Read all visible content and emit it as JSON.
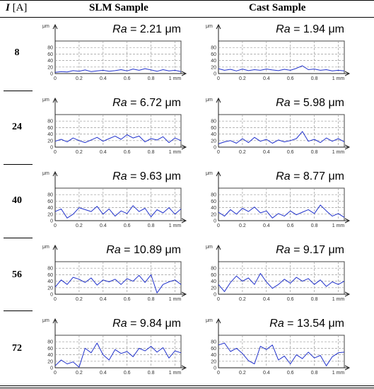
{
  "header": {
    "current_symbol": "I",
    "current_unit": "[A]",
    "col_slm": "SLM Sample",
    "col_cast": "Cast Sample"
  },
  "axis": {
    "y_unit": "μm",
    "x_unit": "mm",
    "y_ticks": [
      "0",
      "20",
      "40",
      "60",
      "80"
    ],
    "x_ticks": [
      "0",
      "0.2",
      "0.4",
      "0.6",
      "0.8",
      "1"
    ],
    "ylim": [
      0,
      100
    ],
    "xlim": [
      0,
      1.05
    ],
    "ra_symbol": "Ra",
    "ra_unit": "μm"
  },
  "colors": {
    "profile": "#2233cc",
    "grid": "#9a9a9a",
    "frame": "#444444"
  },
  "rows": [
    {
      "current": "8",
      "slm": {
        "ra": "2.21",
        "chart_data": {
          "type": "line",
          "x": [
            0,
            0.05,
            0.1,
            0.15,
            0.2,
            0.25,
            0.3,
            0.35,
            0.4,
            0.45,
            0.5,
            0.55,
            0.6,
            0.65,
            0.7,
            0.75,
            0.8,
            0.85,
            0.9,
            0.95,
            1,
            1.05
          ],
          "y": [
            4,
            6,
            5,
            9,
            7,
            11,
            6,
            8,
            10,
            7,
            9,
            12,
            8,
            14,
            10,
            15,
            11,
            7,
            12,
            8,
            10,
            6
          ]
        }
      },
      "cast": {
        "ra": "1.94",
        "chart_data": {
          "type": "line",
          "x": [
            0,
            0.05,
            0.1,
            0.15,
            0.2,
            0.25,
            0.3,
            0.35,
            0.4,
            0.45,
            0.5,
            0.55,
            0.6,
            0.65,
            0.7,
            0.75,
            0.8,
            0.85,
            0.9,
            0.95,
            1,
            1.05
          ],
          "y": [
            15,
            10,
            13,
            8,
            14,
            9,
            12,
            10,
            14,
            11,
            9,
            13,
            10,
            16,
            24,
            12,
            14,
            10,
            12,
            8,
            10,
            8
          ]
        }
      }
    },
    {
      "current": "24",
      "slm": {
        "ra": "6.72",
        "chart_data": {
          "type": "line",
          "x": [
            0,
            0.05,
            0.1,
            0.15,
            0.2,
            0.25,
            0.3,
            0.35,
            0.4,
            0.45,
            0.5,
            0.55,
            0.6,
            0.65,
            0.7,
            0.75,
            0.8,
            0.85,
            0.9,
            0.95,
            1,
            1.05
          ],
          "y": [
            18,
            24,
            16,
            28,
            20,
            14,
            22,
            30,
            18,
            26,
            34,
            24,
            38,
            28,
            34,
            16,
            26,
            22,
            32,
            14,
            28,
            20
          ]
        }
      },
      "cast": {
        "ra": "5.98",
        "chart_data": {
          "type": "line",
          "x": [
            0,
            0.05,
            0.1,
            0.15,
            0.2,
            0.25,
            0.3,
            0.35,
            0.4,
            0.45,
            0.5,
            0.55,
            0.6,
            0.65,
            0.7,
            0.75,
            0.8,
            0.85,
            0.9,
            0.95,
            1,
            1.05
          ],
          "y": [
            10,
            16,
            20,
            12,
            26,
            14,
            30,
            18,
            24,
            12,
            22,
            16,
            20,
            26,
            48,
            18,
            24,
            14,
            28,
            18,
            26,
            16
          ]
        }
      }
    },
    {
      "current": "40",
      "slm": {
        "ra": "9.63",
        "chart_data": {
          "type": "line",
          "x": [
            0,
            0.05,
            0.1,
            0.15,
            0.2,
            0.25,
            0.3,
            0.35,
            0.4,
            0.45,
            0.5,
            0.55,
            0.6,
            0.65,
            0.7,
            0.75,
            0.8,
            0.85,
            0.9,
            0.95,
            1,
            1.05
          ],
          "y": [
            28,
            36,
            8,
            20,
            40,
            34,
            28,
            44,
            20,
            36,
            14,
            30,
            22,
            46,
            28,
            38,
            12,
            34,
            24,
            40,
            20,
            36
          ]
        }
      },
      "cast": {
        "ra": "8.77",
        "chart_data": {
          "type": "line",
          "x": [
            0,
            0.05,
            0.1,
            0.15,
            0.2,
            0.25,
            0.3,
            0.35,
            0.4,
            0.45,
            0.5,
            0.55,
            0.6,
            0.65,
            0.7,
            0.75,
            0.8,
            0.85,
            0.9,
            0.95,
            1,
            1.05
          ],
          "y": [
            26,
            14,
            34,
            20,
            38,
            28,
            42,
            24,
            30,
            8,
            22,
            14,
            30,
            18,
            26,
            34,
            22,
            48,
            30,
            14,
            22,
            10
          ]
        }
      }
    },
    {
      "current": "56",
      "slm": {
        "ra": "10.89",
        "chart_data": {
          "type": "line",
          "x": [
            0,
            0.05,
            0.1,
            0.15,
            0.2,
            0.25,
            0.3,
            0.35,
            0.4,
            0.45,
            0.5,
            0.55,
            0.6,
            0.65,
            0.7,
            0.75,
            0.8,
            0.85,
            0.9,
            0.95,
            1,
            1.05
          ],
          "y": [
            22,
            44,
            30,
            52,
            46,
            36,
            50,
            28,
            44,
            38,
            46,
            30,
            48,
            40,
            58,
            36,
            60,
            4,
            30,
            38,
            44,
            30
          ]
        }
      },
      "cast": {
        "ra": "9.17",
        "chart_data": {
          "type": "line",
          "x": [
            0,
            0.05,
            0.1,
            0.15,
            0.2,
            0.25,
            0.3,
            0.35,
            0.4,
            0.45,
            0.5,
            0.55,
            0.6,
            0.65,
            0.7,
            0.75,
            0.8,
            0.85,
            0.9,
            0.95,
            1,
            1.05
          ],
          "y": [
            30,
            8,
            36,
            56,
            40,
            50,
            30,
            64,
            38,
            18,
            30,
            46,
            34,
            52,
            40,
            48,
            30,
            44,
            24,
            38,
            30,
            40
          ]
        }
      }
    },
    {
      "current": "72",
      "slm": {
        "ra": "9.84",
        "chart_data": {
          "type": "line",
          "x": [
            0,
            0.05,
            0.1,
            0.15,
            0.2,
            0.25,
            0.3,
            0.35,
            0.4,
            0.45,
            0.5,
            0.55,
            0.6,
            0.65,
            0.7,
            0.75,
            0.8,
            0.85,
            0.9,
            0.95,
            1,
            1.05
          ],
          "y": [
            6,
            24,
            12,
            18,
            2,
            60,
            46,
            76,
            40,
            24,
            56,
            44,
            50,
            34,
            60,
            52,
            66,
            48,
            62,
            30,
            52,
            46
          ]
        }
      },
      "cast": {
        "ra": "13.54",
        "chart_data": {
          "type": "line",
          "x": [
            0,
            0.05,
            0.1,
            0.15,
            0.2,
            0.25,
            0.3,
            0.35,
            0.4,
            0.45,
            0.5,
            0.55,
            0.6,
            0.65,
            0.7,
            0.75,
            0.8,
            0.85,
            0.9,
            0.95,
            1,
            1.05
          ],
          "y": [
            70,
            76,
            50,
            60,
            44,
            22,
            12,
            66,
            56,
            70,
            24,
            36,
            12,
            40,
            28,
            48,
            30,
            38,
            6,
            34,
            46,
            48
          ]
        }
      }
    }
  ]
}
